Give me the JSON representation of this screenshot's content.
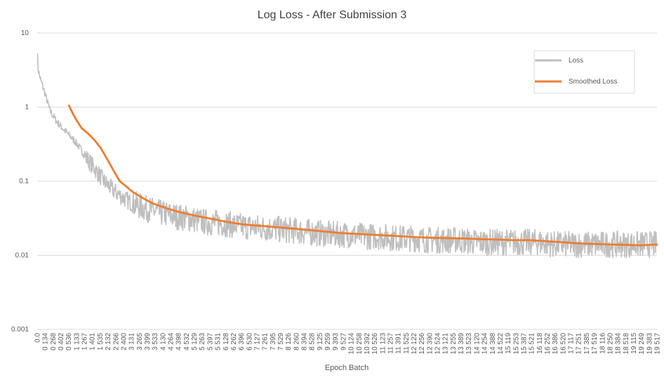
{
  "chart_data": {
    "type": "line",
    "title": "Log Loss - After Submission 3",
    "xlabel": "Epoch Batch",
    "ylabel": "",
    "yscale": "log",
    "ylim": [
      0.001,
      10
    ],
    "y_ticks": [
      "10",
      "1",
      "0.1",
      "0.01",
      "0.001"
    ],
    "y_tick_values": [
      10,
      1,
      0.1,
      0.01,
      0.001
    ],
    "xlim": [
      0,
      19517
    ],
    "x_tick_labels": [
      "0.0",
      "0 134",
      "0 268",
      "0 402",
      "0 536",
      "1 133",
      "1 267",
      "1 401",
      "1 535",
      "2 132",
      "2 266",
      "2 400",
      "3 131",
      "3 265",
      "3 399",
      "3 533",
      "4 130",
      "4 264",
      "4 398",
      "4 532",
      "5 129",
      "5 263",
      "5 397",
      "5 531",
      "6 128",
      "6 262",
      "6 396",
      "6 530",
      "7 127",
      "7 261",
      "7 395",
      "7 529",
      "8 126",
      "8 260",
      "8 394",
      "8 528",
      "9 125",
      "9 259",
      "9 393",
      "9 527",
      "10 124",
      "10 258",
      "10 392",
      "10 526",
      "11 123",
      "11 257",
      "11 391",
      "11 525",
      "12 122",
      "12 256",
      "12 390",
      "12 524",
      "13 121",
      "13 255",
      "13 389",
      "13 523",
      "14 120",
      "14 254",
      "14 388",
      "14 522",
      "15 119",
      "15 253",
      "15 387",
      "15 521",
      "16 118",
      "16 252",
      "16 386",
      "16 520",
      "17 117",
      "17 251",
      "17 385",
      "17 519",
      "18 116",
      "18 250",
      "18 384",
      "18 518",
      "19 115",
      "19 249",
      "19 383",
      "19 517"
    ],
    "grid": true,
    "legend_position": "top-right",
    "series": [
      {
        "name": "Loss",
        "color": "#bfbfbf",
        "x": [
          0,
          30,
          100,
          250,
          400,
          600,
          800,
          1000,
          1150,
          1300,
          1500,
          1800,
          2100,
          2400,
          2700,
          3000,
          3400,
          3800,
          4300,
          4800,
          5300,
          5800,
          6300,
          6800,
          7300,
          7800,
          8300,
          8800,
          9300,
          9800,
          10300,
          10800,
          11300,
          11800,
          12300,
          12800,
          13300,
          13800,
          14300,
          14800,
          15300,
          15800,
          16300,
          16800,
          17300,
          17800,
          18300,
          18800,
          19300,
          19517
        ],
        "y": [
          6.0,
          3.2,
          2.4,
          1.5,
          0.9,
          0.65,
          0.52,
          0.42,
          0.36,
          0.3,
          0.22,
          0.15,
          0.1,
          0.075,
          0.06,
          0.05,
          0.043,
          0.038,
          0.034,
          0.031,
          0.028,
          0.027,
          0.025,
          0.024,
          0.023,
          0.022,
          0.021,
          0.02,
          0.019,
          0.019,
          0.018,
          0.018,
          0.017,
          0.017,
          0.016,
          0.016,
          0.016,
          0.015,
          0.015,
          0.015,
          0.015,
          0.015,
          0.014,
          0.014,
          0.014,
          0.014,
          0.014,
          0.014,
          0.014,
          0.014
        ]
      },
      {
        "name": "Smoothed Loss",
        "color": "#ed7d31",
        "x": [
          1000,
          1100,
          1250,
          1400,
          1600,
          1800,
          2000,
          2200,
          2400,
          2600,
          2800,
          3000,
          3300,
          3600,
          4000,
          4500,
          5000,
          5500,
          6000,
          6500,
          7000,
          7500,
          8000,
          8500,
          9000,
          9500,
          10000,
          10500,
          11000,
          11500,
          12000,
          12500,
          13000,
          13500,
          14000,
          14500,
          15000,
          15500,
          16000,
          16500,
          17000,
          17500,
          18000,
          18500,
          19000,
          19517
        ],
        "y": [
          1.05,
          0.85,
          0.65,
          0.52,
          0.44,
          0.36,
          0.28,
          0.2,
          0.14,
          0.1,
          0.085,
          0.072,
          0.06,
          0.051,
          0.044,
          0.038,
          0.034,
          0.031,
          0.028,
          0.026,
          0.025,
          0.024,
          0.023,
          0.022,
          0.021,
          0.02,
          0.0195,
          0.019,
          0.0185,
          0.018,
          0.0175,
          0.0172,
          0.017,
          0.0168,
          0.0165,
          0.0163,
          0.016,
          0.016,
          0.0155,
          0.015,
          0.0145,
          0.0142,
          0.014,
          0.0138,
          0.0136,
          0.014
        ]
      }
    ]
  }
}
